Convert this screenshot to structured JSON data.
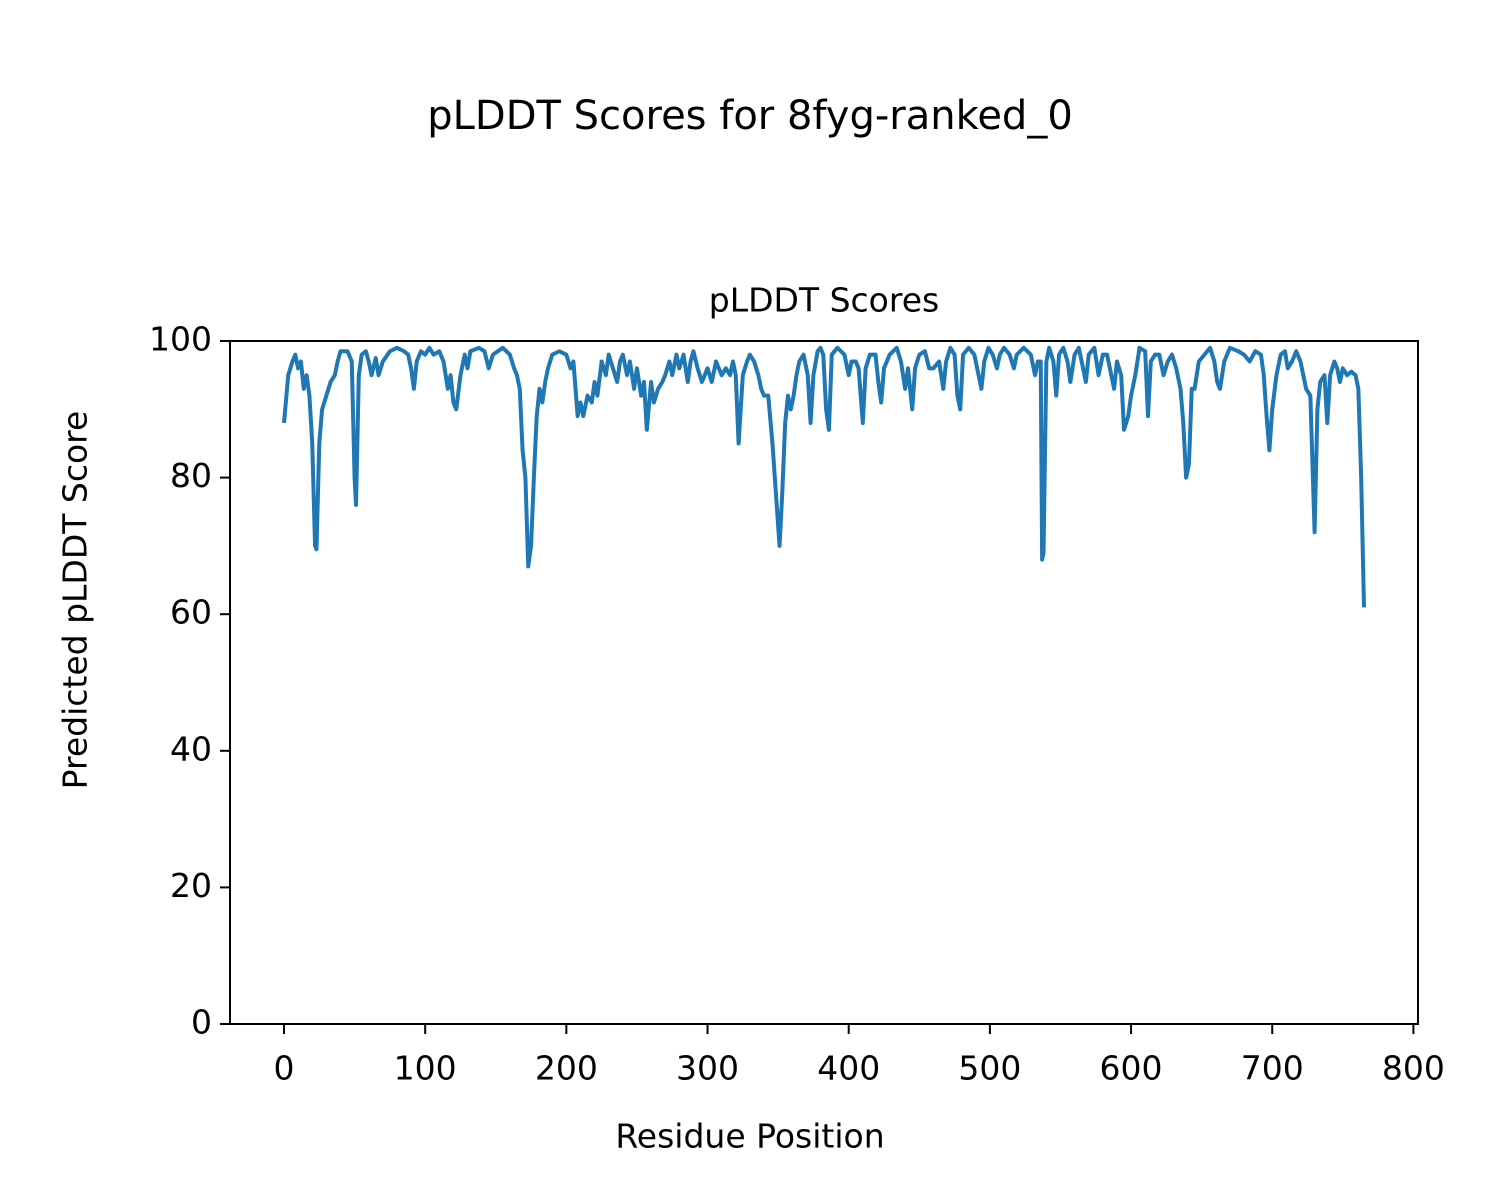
{
  "chart_data": {
    "type": "line",
    "suptitle": "pLDDT Scores for 8fyg-ranked_0",
    "title": "pLDDT Scores",
    "xlabel": "Residue Position",
    "ylabel": "Predicted pLDDT Score",
    "xlim": [
      -38.25,
      803.25
    ],
    "xticks": [
      0,
      100,
      200,
      300,
      400,
      500,
      600,
      700,
      800
    ],
    "ylim": [
      0,
      100
    ],
    "yticks": [
      0,
      20,
      40,
      60,
      80,
      100
    ],
    "grid": false,
    "x": [
      0,
      3,
      6,
      8,
      10,
      12,
      14,
      16,
      18,
      20,
      22,
      23,
      25,
      27,
      30,
      33,
      36,
      38,
      40,
      45,
      48,
      50,
      51,
      53,
      55,
      58,
      60,
      62,
      65,
      67,
      70,
      75,
      80,
      85,
      88,
      90,
      92,
      94,
      97,
      100,
      103,
      106,
      110,
      113,
      116,
      118,
      120,
      122,
      125,
      128,
      130,
      132,
      138,
      142,
      145,
      148,
      155,
      160,
      163,
      165,
      167,
      169,
      171,
      173,
      175,
      177,
      179,
      181,
      183,
      185,
      187,
      190,
      195,
      200,
      203,
      205,
      208,
      210,
      212,
      215,
      218,
      220,
      222,
      225,
      228,
      230,
      233,
      236,
      238,
      240,
      243,
      245,
      248,
      250,
      253,
      255,
      257,
      260,
      262,
      265,
      268,
      270,
      273,
      275,
      278,
      280,
      283,
      286,
      288,
      290,
      293,
      296,
      300,
      303,
      306,
      310,
      313,
      316,
      318,
      320,
      322,
      325,
      328,
      330,
      333,
      336,
      338,
      340,
      343,
      346,
      348,
      351,
      353,
      355,
      357,
      359,
      361,
      363,
      365,
      368,
      371,
      373,
      375,
      378,
      380,
      382,
      384,
      386,
      388,
      392,
      397,
      400,
      402,
      405,
      407,
      410,
      412,
      415,
      419,
      421,
      423,
      425,
      429,
      434,
      437,
      440,
      442,
      445,
      447,
      450,
      454,
      457,
      460,
      464,
      467,
      469,
      472,
      475,
      477,
      479,
      481,
      485,
      489,
      492,
      494,
      496,
      499,
      502,
      505,
      507,
      510,
      514,
      517,
      519,
      524,
      529,
      532,
      534,
      536,
      537,
      538,
      540,
      542,
      545,
      547,
      549,
      552,
      555,
      557,
      560,
      563,
      566,
      568,
      570,
      574,
      577,
      580,
      583,
      586,
      588,
      590,
      593,
      595,
      598,
      600,
      603,
      606,
      610,
      612,
      614,
      617,
      620,
      623,
      626,
      629,
      632,
      635,
      637,
      639,
      641,
      643,
      645,
      648,
      652,
      656,
      659,
      661,
      663,
      666,
      670,
      676,
      680,
      684,
      688,
      692,
      694,
      696,
      698,
      700,
      703,
      706,
      709,
      711,
      714,
      717,
      720,
      722,
      724,
      727,
      730,
      732,
      734,
      737,
      739,
      741,
      744,
      746,
      748,
      750,
      753,
      756,
      759,
      761,
      763,
      765
    ],
    "series": [
      {
        "name": "pLDDT",
        "color": "#1f77b4",
        "values": [
          88,
          95,
          97,
          98,
          96,
          97,
          93,
          95,
          92,
          85,
          70,
          69.5,
          85,
          90,
          92,
          94,
          95,
          97,
          98.5,
          98.5,
          97,
          80,
          76,
          95,
          98,
          98.5,
          97,
          95,
          97.5,
          95,
          97,
          98.5,
          99,
          98.5,
          98,
          96,
          93,
          97,
          98.5,
          98,
          99,
          98,
          98.5,
          97,
          93,
          95,
          91,
          90,
          95,
          98,
          96,
          98.5,
          99,
          98.5,
          96,
          98,
          99,
          98,
          96,
          95,
          93,
          84,
          80,
          67,
          70,
          80,
          89,
          93,
          91,
          94,
          96,
          98,
          98.5,
          98,
          96,
          97,
          89,
          91,
          89,
          92,
          91,
          94,
          92,
          97,
          95,
          98,
          96,
          94,
          97,
          98,
          95,
          97,
          93,
          96,
          92,
          94,
          87,
          94,
          91,
          93,
          94,
          95,
          97,
          95,
          98,
          96,
          98,
          94,
          97,
          98.5,
          96,
          94,
          96,
          94,
          97,
          95,
          96,
          95,
          97,
          95,
          85,
          95,
          97,
          98,
          97,
          95,
          93,
          92,
          92,
          85,
          79,
          70,
          78,
          88,
          92,
          90,
          92,
          95,
          97,
          98,
          95,
          88,
          95,
          98.5,
          99,
          98,
          90,
          87,
          98,
          99,
          98,
          95,
          97,
          97,
          96,
          88,
          96,
          98,
          98,
          94,
          91,
          96,
          98,
          99,
          97,
          93,
          96,
          90,
          96,
          98,
          98.5,
          96,
          96,
          97,
          93,
          97,
          99,
          98,
          92,
          90,
          98,
          99,
          98,
          95,
          93,
          97,
          99,
          98,
          96,
          98,
          99,
          98,
          96,
          98,
          99,
          98,
          95,
          97,
          97,
          68,
          69,
          97,
          99,
          97,
          92,
          98,
          99,
          97,
          94,
          98,
          99,
          96,
          94,
          98,
          99,
          95,
          98,
          98,
          95,
          93,
          97,
          95,
          87,
          89,
          92,
          95,
          99,
          98.5,
          89,
          97,
          98,
          98,
          95,
          97,
          98,
          96,
          93,
          88,
          80,
          82,
          93,
          93,
          97,
          98,
          99,
          97,
          94,
          93,
          97,
          99,
          98.5,
          98,
          97,
          98.5,
          98,
          95,
          89,
          84,
          90,
          95,
          98,
          98.5,
          96,
          97,
          98.5,
          97,
          95,
          93,
          92,
          72,
          90,
          94,
          95,
          88,
          95,
          97,
          96,
          94,
          96,
          95,
          95.5,
          95,
          93,
          80,
          61
        ]
      }
    ]
  }
}
